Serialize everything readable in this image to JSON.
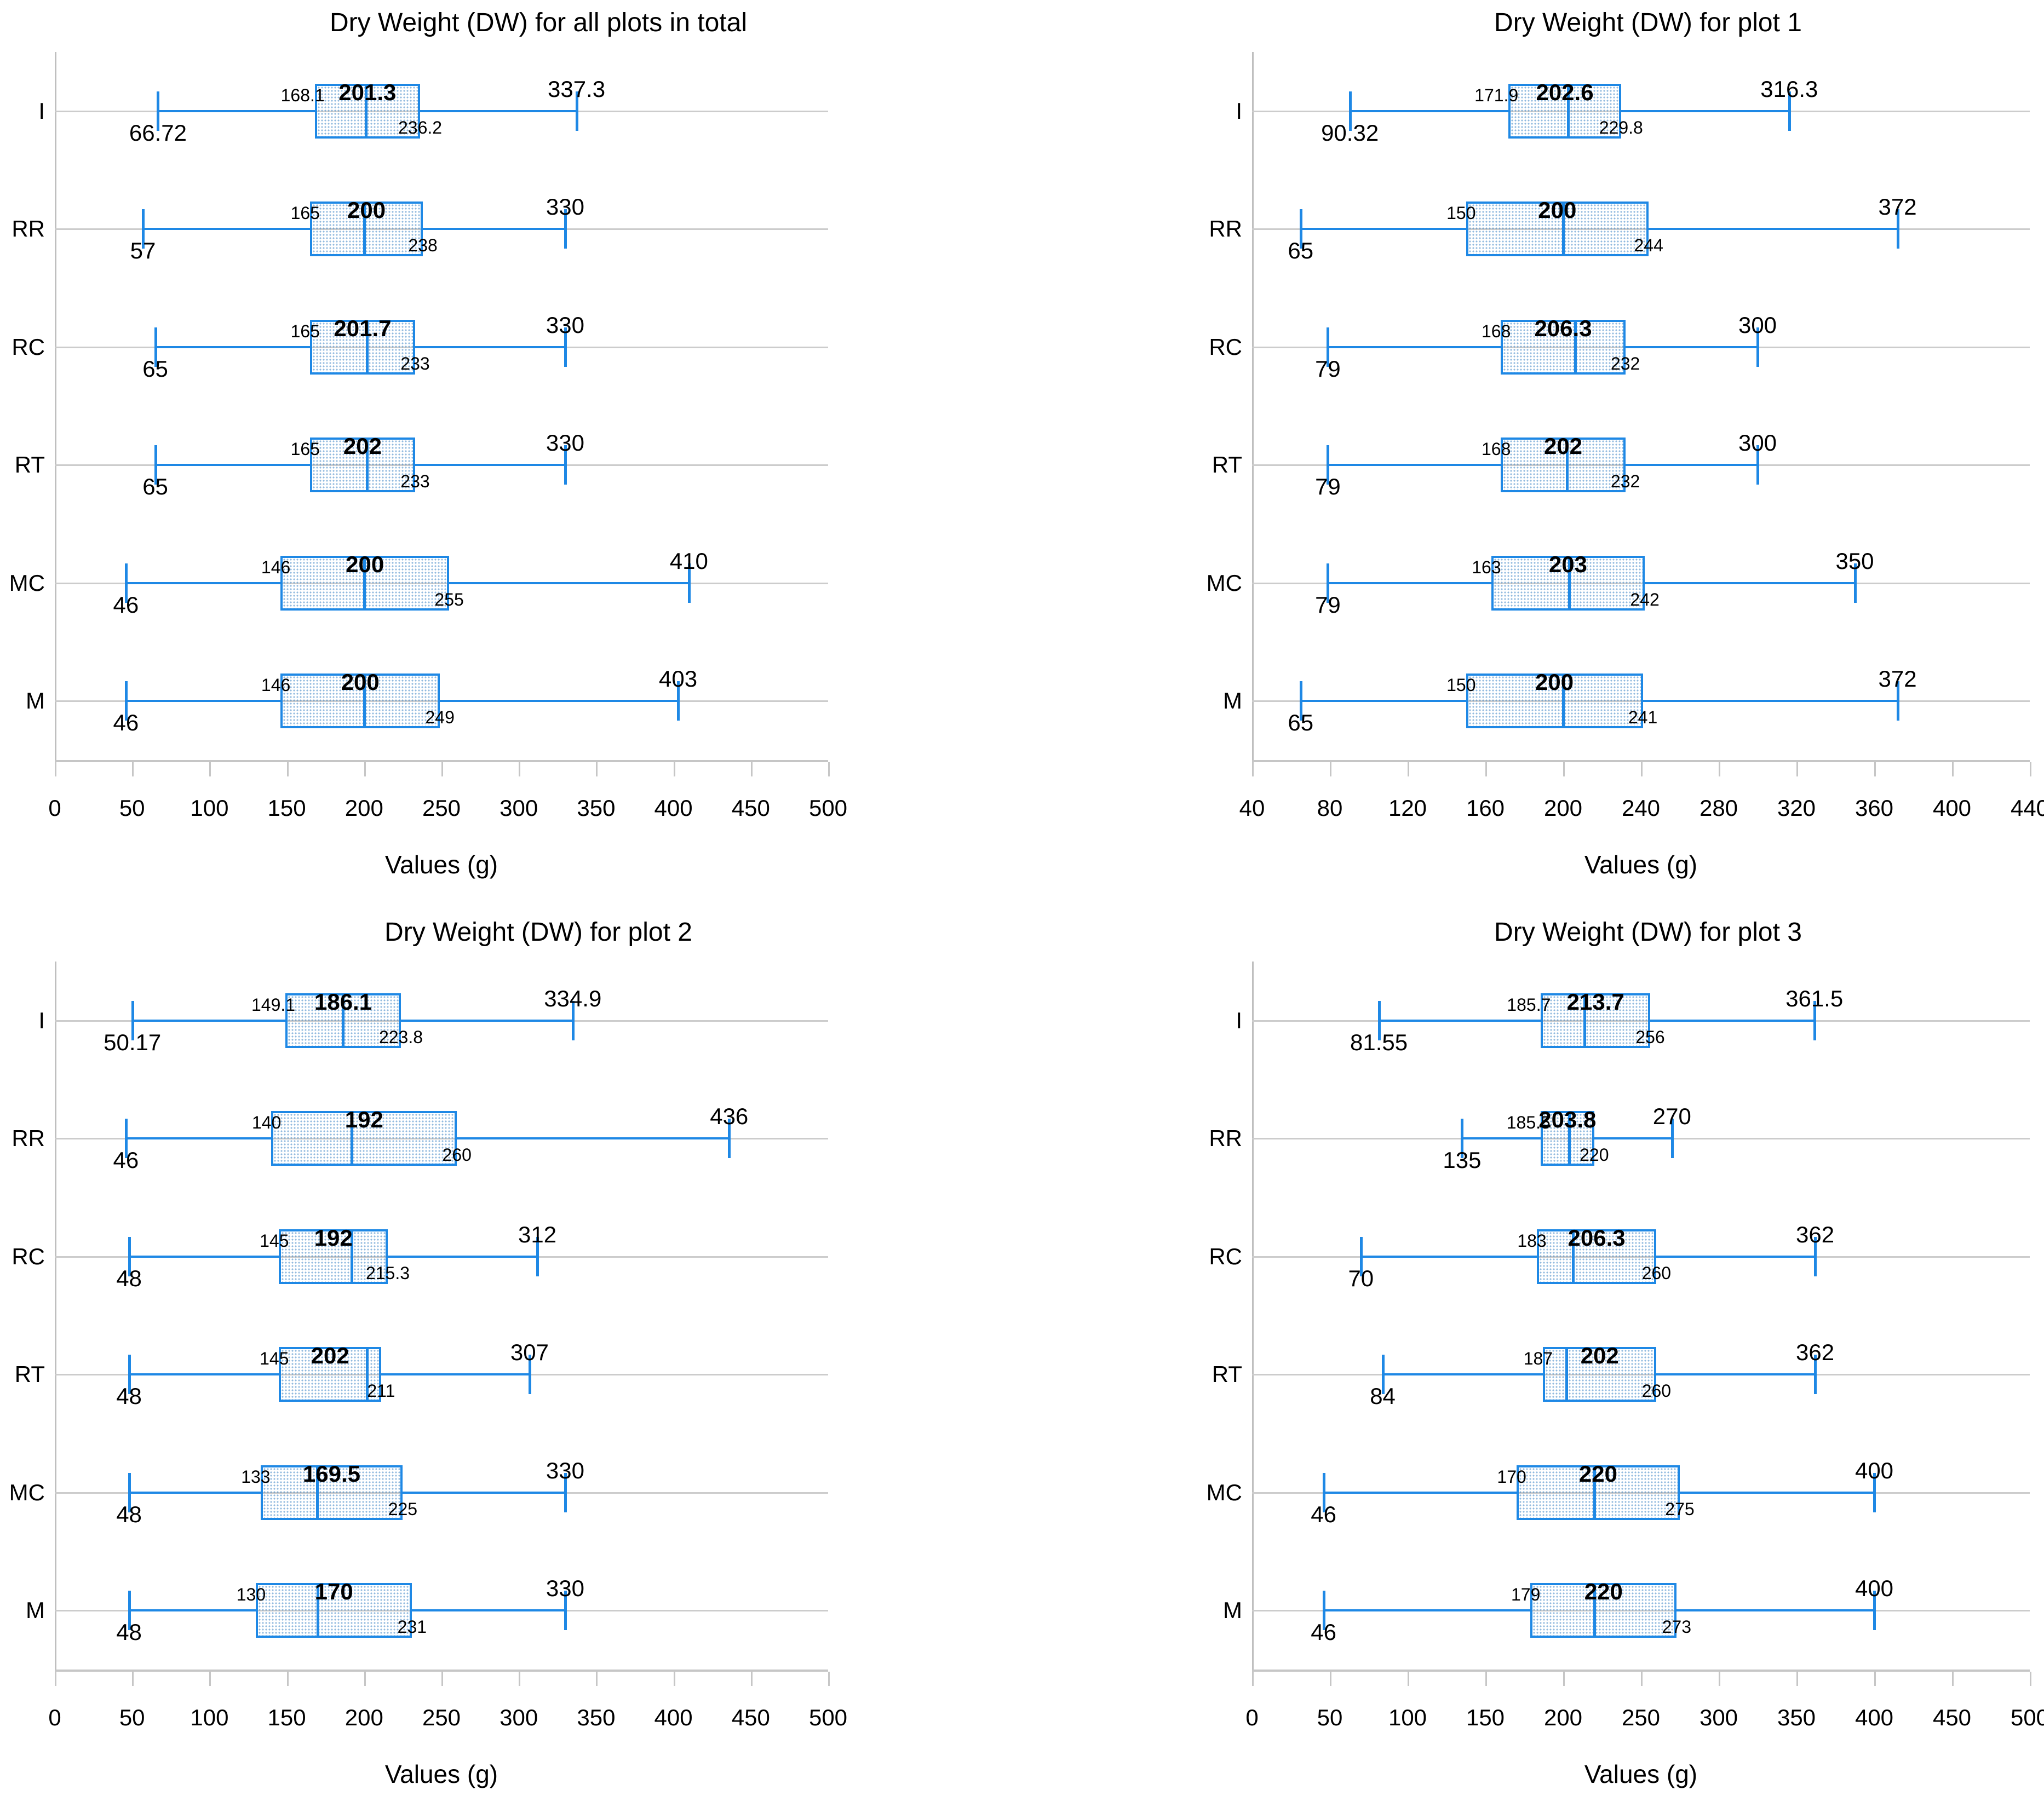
{
  "figure": {
    "x_axis_title": "Values (g)",
    "categories_top_to_bottom": [
      "I",
      "RR",
      "RC",
      "RT",
      "MC",
      "M"
    ],
    "accent_color": "#1e88e5",
    "gridline_color": "#cccccc"
  },
  "chart_data": [
    {
      "type": "boxplot",
      "title": "Dry Weight (DW) for all plots in total",
      "xlabel": "Values (g)",
      "xlim": [
        0,
        500
      ],
      "xtick_step": 50,
      "xticks": [
        "0",
        "50",
        "100",
        "150",
        "200",
        "250",
        "300",
        "350",
        "400",
        "450",
        "500"
      ],
      "grid": "horizontal",
      "categories": [
        "I",
        "RR",
        "RC",
        "RT",
        "MC",
        "M"
      ],
      "stats": [
        {
          "category": "I",
          "min": 66.72,
          "q1": 168.1,
          "median": 201.3,
          "q3": 236.2,
          "max": 337.3
        },
        {
          "category": "RR",
          "min": 57,
          "q1": 165,
          "median": 200,
          "q3": 238,
          "max": 330
        },
        {
          "category": "RC",
          "min": 65,
          "q1": 165,
          "median": 201.7,
          "q3": 233,
          "max": 330
        },
        {
          "category": "RT",
          "min": 65,
          "q1": 165,
          "median": 202,
          "q3": 233,
          "max": 330
        },
        {
          "category": "MC",
          "min": 46,
          "q1": 146,
          "median": 200,
          "q3": 255,
          "max": 410
        },
        {
          "category": "M",
          "min": 46,
          "q1": 146,
          "median": 200,
          "q3": 249,
          "max": 403
        }
      ]
    },
    {
      "type": "boxplot",
      "title": "Dry Weight (DW) for plot 1",
      "xlabel": "Values (g)",
      "xlim": [
        40,
        440
      ],
      "xtick_step": 40,
      "xticks": [
        "40",
        "80",
        "120",
        "160",
        "200",
        "240",
        "280",
        "320",
        "360",
        "400",
        "440"
      ],
      "grid": "horizontal",
      "categories": [
        "I",
        "RR",
        "RC",
        "RT",
        "MC",
        "M"
      ],
      "stats": [
        {
          "category": "I",
          "min": 90.32,
          "q1": 171.9,
          "median": 202.6,
          "q3": 229.8,
          "max": 316.3
        },
        {
          "category": "RR",
          "min": 65,
          "q1": 150,
          "median": 200,
          "q3": 244,
          "max": 372
        },
        {
          "category": "RC",
          "min": 79,
          "q1": 168,
          "median": 206.3,
          "q3": 232,
          "max": 300
        },
        {
          "category": "RT",
          "min": 79,
          "q1": 168,
          "median": 202,
          "q3": 232,
          "max": 300
        },
        {
          "category": "MC",
          "min": 79,
          "q1": 163,
          "median": 203,
          "q3": 242,
          "max": 350
        },
        {
          "category": "M",
          "min": 65,
          "q1": 150,
          "median": 200,
          "q3": 241,
          "max": 372
        }
      ]
    },
    {
      "type": "boxplot",
      "title": "Dry Weight (DW) for plot 2",
      "xlabel": "Values (g)",
      "xlim": [
        0,
        500
      ],
      "xtick_step": 50,
      "xticks": [
        "0",
        "50",
        "100",
        "150",
        "200",
        "250",
        "300",
        "350",
        "400",
        "450",
        "500"
      ],
      "grid": "horizontal",
      "categories": [
        "I",
        "RR",
        "RC",
        "RT",
        "MC",
        "M"
      ],
      "stats": [
        {
          "category": "I",
          "min": 50.17,
          "q1": 149.1,
          "median": 186.1,
          "q3": 223.8,
          "max": 334.9
        },
        {
          "category": "RR",
          "min": 46,
          "q1": 140,
          "median": 192,
          "q3": 260,
          "max": 436
        },
        {
          "category": "RC",
          "min": 48,
          "q1": 145,
          "median": 192,
          "q3": 215.3,
          "max": 312
        },
        {
          "category": "RT",
          "min": 48,
          "q1": 145,
          "median": 202,
          "q3": 211,
          "max": 307
        },
        {
          "category": "MC",
          "min": 48,
          "q1": 133,
          "median": 169.5,
          "q3": 225,
          "max": 330
        },
        {
          "category": "M",
          "min": 48,
          "q1": 130,
          "median": 170,
          "q3": 231,
          "max": 330
        }
      ]
    },
    {
      "type": "boxplot",
      "title": "Dry Weight (DW) for plot 3",
      "xlabel": "Values (g)",
      "xlim": [
        0,
        500
      ],
      "xtick_step": 50,
      "xticks": [
        "0",
        "50",
        "100",
        "150",
        "200",
        "250",
        "300",
        "350",
        "400",
        "450",
        "500"
      ],
      "grid": "horizontal",
      "categories": [
        "I",
        "RR",
        "RC",
        "RT",
        "MC",
        "M"
      ],
      "stats": [
        {
          "category": "I",
          "min": 81.55,
          "q1": 185.7,
          "median": 213.7,
          "q3": 256,
          "max": 361.5
        },
        {
          "category": "RR",
          "min": 135,
          "q1": 185.5,
          "median": 203.8,
          "q3": 220,
          "max": 270
        },
        {
          "category": "RC",
          "min": 70,
          "q1": 183,
          "median": 206.3,
          "q3": 260,
          "max": 362
        },
        {
          "category": "RT",
          "min": 84,
          "q1": 187,
          "median": 202,
          "q3": 260,
          "max": 362
        },
        {
          "category": "MC",
          "min": 46,
          "q1": 170,
          "median": 220,
          "q3": 275,
          "max": 400
        },
        {
          "category": "M",
          "min": 46,
          "q1": 179,
          "median": 220,
          "q3": 273,
          "max": 400
        }
      ]
    }
  ]
}
